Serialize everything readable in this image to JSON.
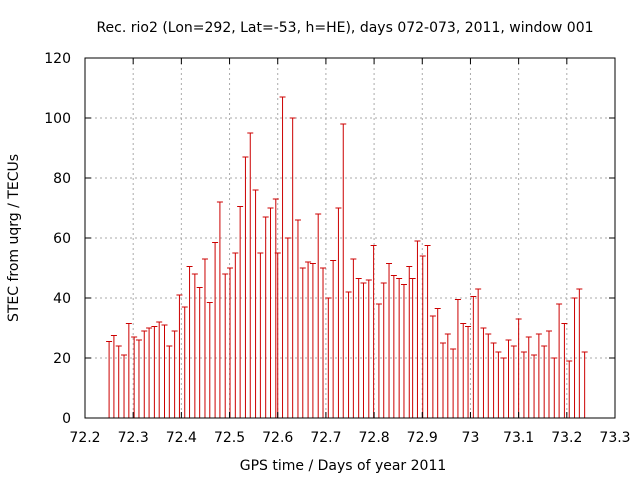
{
  "chart_data": {
    "type": "scatter",
    "title": "Rec. rio2 (Lon=292, Lat=-53, h=HE), days 072-073, 2011, window 001",
    "xlabel": "GPS time / Days of year 2011",
    "ylabel": "STEC from uqrg / TECUs",
    "xlim": [
      72.2,
      73.3
    ],
    "ylim": [
      0,
      120
    ],
    "xticks": [
      "72.2",
      "72.3",
      "72.4",
      "72.5",
      "72.6",
      "72.7",
      "72.8",
      "72.9",
      "73",
      "73.1",
      "73.2",
      "73.3"
    ],
    "yticks": [
      "0",
      "20",
      "40",
      "60",
      "80",
      "100",
      "120"
    ],
    "grid": true,
    "marker": "impulse-with-tick",
    "color": "#cc0000",
    "x": [
      72.25,
      72.26,
      72.27,
      72.281,
      72.291,
      72.302,
      72.312,
      72.323,
      72.333,
      72.344,
      72.354,
      72.365,
      72.375,
      72.386,
      72.396,
      72.407,
      72.417,
      72.428,
      72.438,
      72.449,
      72.459,
      72.47,
      72.48,
      72.491,
      72.501,
      72.512,
      72.522,
      72.533,
      72.543,
      72.554,
      72.564,
      72.575,
      72.585,
      72.596,
      72.6,
      72.61,
      72.621,
      72.631,
      72.642,
      72.652,
      72.663,
      72.673,
      72.684,
      72.694,
      72.705,
      72.715,
      72.726,
      72.736,
      72.747,
      72.757,
      72.768,
      72.778,
      72.789,
      72.799,
      72.81,
      72.82,
      72.831,
      72.841,
      72.852,
      72.862,
      72.873,
      72.88,
      72.89,
      72.901,
      72.911,
      72.922,
      72.932,
      72.943,
      72.953,
      72.964,
      72.974,
      72.985,
      72.995,
      73.006,
      73.016,
      73.027,
      73.037,
      73.048,
      73.058,
      73.069,
      73.079,
      73.09,
      73.1,
      73.111,
      73.121,
      73.132,
      73.142,
      73.153,
      73.163,
      73.174,
      73.184,
      73.195,
      73.205,
      73.216,
      73.226,
      73.237
    ],
    "y": [
      25.5,
      27.5,
      24.0,
      21.0,
      31.5,
      27.0,
      26.0,
      29.0,
      30.0,
      30.5,
      32.0,
      31.0,
      24.0,
      29.0,
      41.0,
      37.0,
      50.5,
      48.0,
      43.5,
      53.0,
      38.5,
      58.5,
      72.0,
      48.0,
      50.0,
      55.0,
      70.5,
      87.0,
      95.0,
      76.0,
      55.0,
      67.0,
      70.0,
      73.0,
      55.0,
      107.0,
      60.0,
      100.0,
      66.0,
      50.0,
      52.0,
      51.5,
      68.0,
      50.0,
      40.0,
      52.5,
      70.0,
      98.0,
      42.0,
      53.0,
      46.5,
      45.0,
      46.0,
      57.5,
      38.0,
      45.0,
      51.5,
      47.5,
      46.5,
      44.5,
      50.5,
      46.5,
      59.0,
      54.0,
      57.5,
      34.0,
      36.5,
      25.0,
      28.0,
      23.0,
      39.5,
      31.5,
      30.5,
      40.5,
      43.0,
      30.0,
      28.0,
      25.0,
      22.0,
      20.0,
      26.0,
      24.0,
      33.0,
      22.0,
      27.0,
      21.0,
      28.0,
      24.0,
      29.0,
      20.0,
      38.0,
      31.5,
      19.0,
      40.0,
      43.0,
      22.0
    ]
  }
}
